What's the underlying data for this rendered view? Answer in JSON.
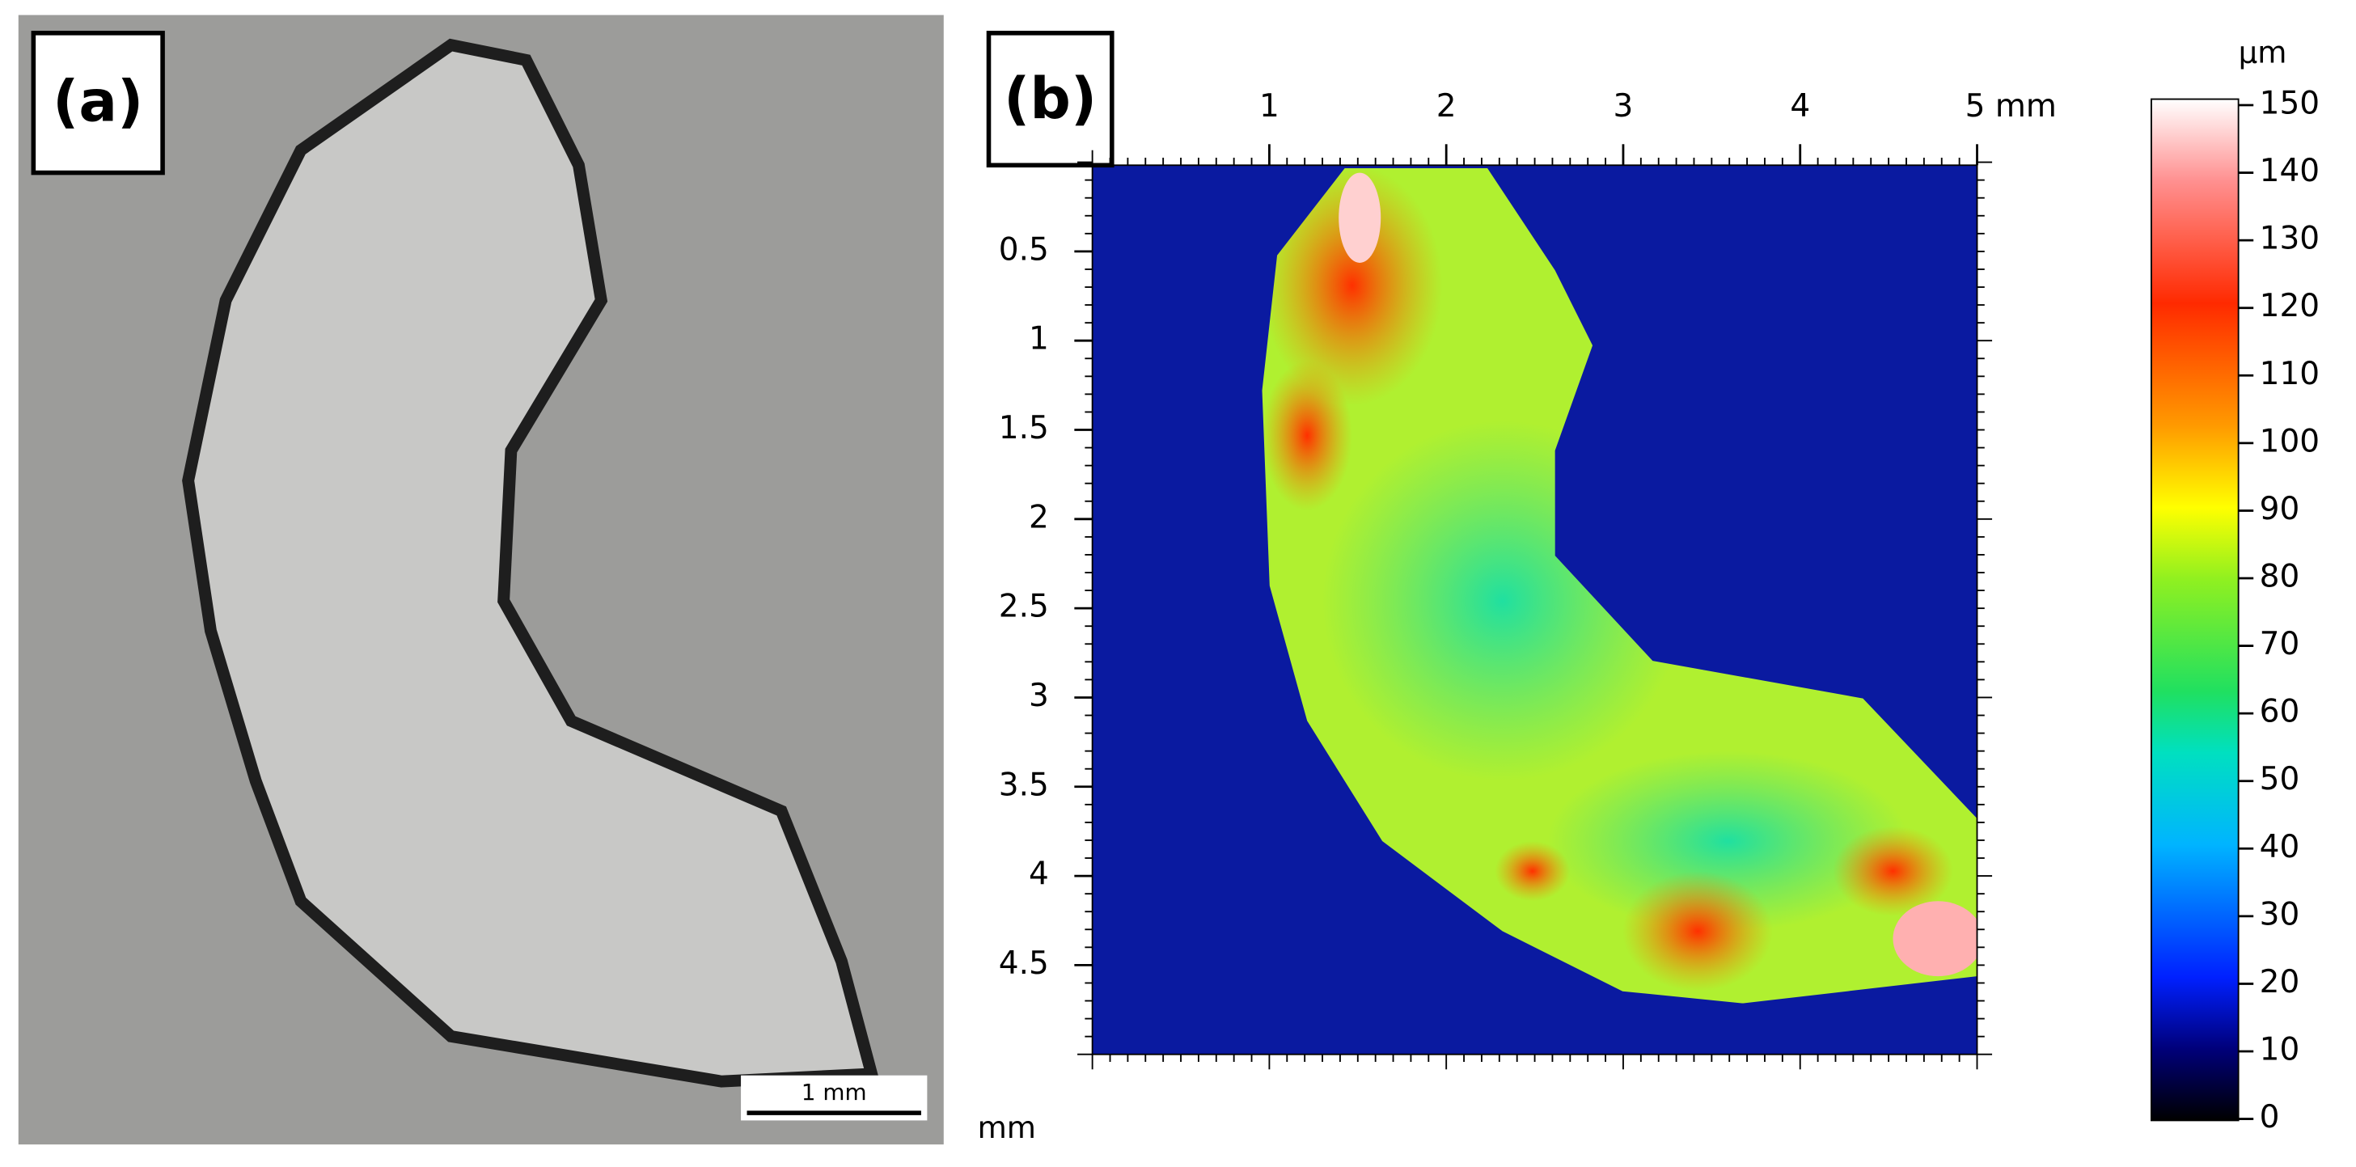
{
  "panel_a": {
    "label": "(a)",
    "scale_bar": "1 mm"
  },
  "panel_b": {
    "label": "(b)",
    "xlim": [
      0,
      5
    ],
    "xticks": [
      1,
      2,
      3,
      4,
      {
        "value": 5,
        "label": "5 mm"
      }
    ],
    "ylim": [
      0,
      5
    ],
    "y_reversed": true,
    "yticks": [
      0.5,
      1,
      1.5,
      2,
      2.5,
      3,
      3.5,
      4,
      4.5
    ],
    "y_unit": "mm"
  },
  "colorbar": {
    "unit": "µm",
    "lim": [
      0,
      150
    ],
    "ticks": [
      0,
      10,
      20,
      30,
      40,
      50,
      60,
      70,
      80,
      90,
      100,
      110,
      120,
      130,
      140,
      150
    ]
  }
}
